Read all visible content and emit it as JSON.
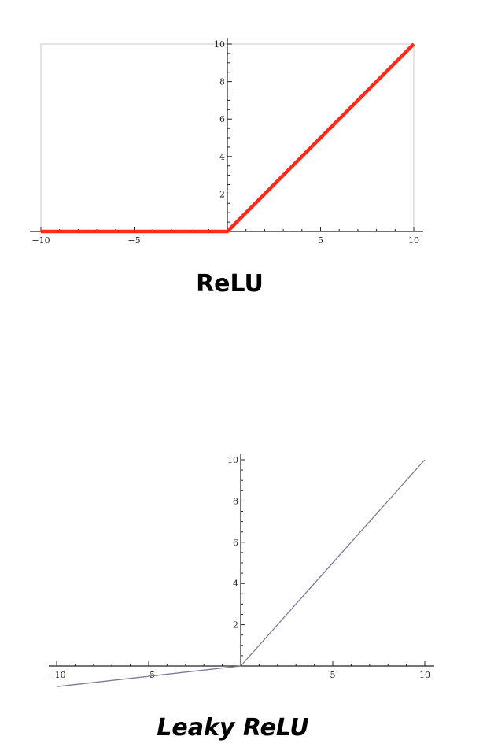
{
  "chart_data": [
    {
      "type": "line",
      "title": "ReLU",
      "xlim": [
        -10,
        10
      ],
      "ylim": [
        0,
        10
      ],
      "x_ticks": [
        -10,
        -5,
        5,
        10
      ],
      "x_tick_labels": [
        "−10",
        "−5",
        "5",
        "10"
      ],
      "y_ticks": [
        2,
        4,
        6,
        8,
        10
      ],
      "y_tick_labels": [
        "2",
        "4",
        "6",
        "8",
        "10"
      ],
      "frame": true,
      "grid": false,
      "series": [
        {
          "x": [
            -10,
            0,
            10
          ],
          "y": [
            0,
            0,
            10
          ],
          "color": "#ff2a1a"
        }
      ]
    },
    {
      "type": "line",
      "title": "Leaky ReLU",
      "xlim": [
        -10,
        10
      ],
      "ylim": [
        -1,
        10
      ],
      "x_ticks": [
        -10,
        -5,
        5,
        10
      ],
      "x_tick_labels": [
        "−10",
        "−5",
        "5",
        "10"
      ],
      "y_ticks": [
        2,
        4,
        6,
        8,
        10
      ],
      "y_tick_labels": [
        "2",
        "4",
        "6",
        "8",
        "10"
      ],
      "frame": false,
      "grid": false,
      "series": [
        {
          "x": [
            -10,
            0,
            10
          ],
          "y": [
            -1,
            0,
            10
          ],
          "color": "#7a7a9e"
        }
      ]
    }
  ]
}
